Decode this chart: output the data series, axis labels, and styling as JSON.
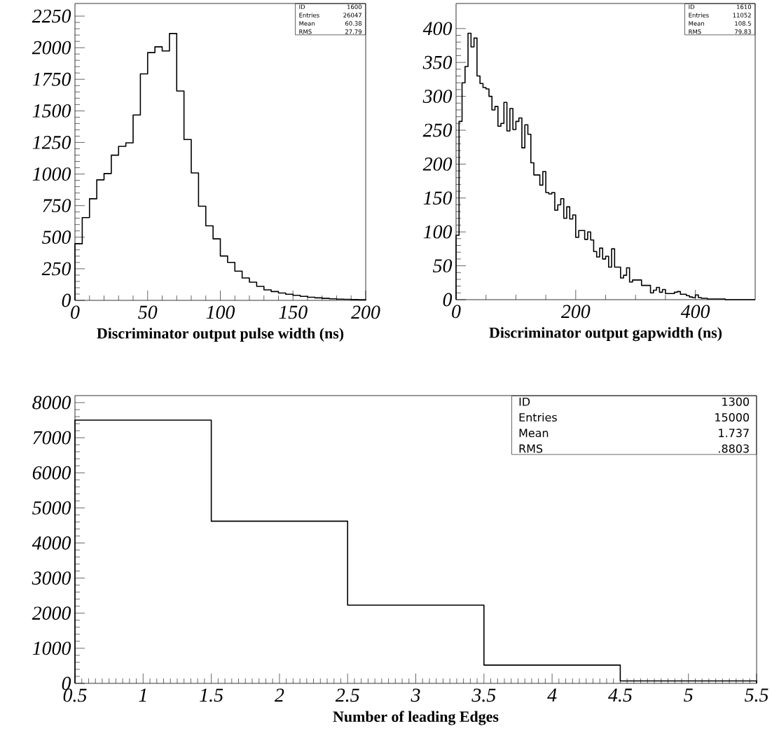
{
  "chart_data": [
    {
      "type": "histogram",
      "xlabel": "Discriminator output pulse width (ns)",
      "color": "#000000",
      "bins": [
        0,
        5,
        10,
        15,
        20,
        25,
        30,
        35,
        40,
        45,
        50,
        55,
        60,
        65,
        70,
        75,
        80,
        85,
        90,
        95,
        100,
        105,
        110,
        115,
        120,
        125,
        130,
        135,
        140,
        145,
        150,
        155,
        160,
        165,
        170,
        175,
        180,
        185,
        190,
        195,
        200
      ],
      "values": [
        448,
        655,
        804,
        954,
        1004,
        1149,
        1219,
        1247,
        1467,
        1793,
        1961,
        2007,
        1974,
        2112,
        1657,
        1273,
        1009,
        745,
        590,
        487,
        351,
        301,
        231,
        177,
        144,
        111,
        83,
        70,
        58,
        48,
        40,
        32,
        25,
        20,
        16,
        12,
        10,
        8,
        6,
        5
      ],
      "xlim": [
        0,
        200
      ],
      "xticks": [
        0,
        50,
        100,
        150,
        200
      ],
      "ylim": [
        0,
        2350
      ],
      "yticks": [
        0,
        250,
        500,
        750,
        1000,
        1250,
        1500,
        1750,
        2000,
        2250
      ],
      "annotations": [
        "ID",
        "1600",
        "Entries",
        "26047",
        "Mean",
        "60.38",
        "RMS",
        "27.79"
      ]
    },
    {
      "type": "histogram",
      "xlabel": "Discriminator output gapwidth (ns)",
      "color": "#000000",
      "bins": [
        0,
        5,
        10,
        15,
        20,
        25,
        30,
        35,
        40,
        45,
        50,
        55,
        60,
        65,
        70,
        75,
        80,
        85,
        90,
        95,
        100,
        105,
        110,
        115,
        120,
        125,
        130,
        135,
        140,
        145,
        150,
        155,
        160,
        165,
        170,
        175,
        180,
        185,
        190,
        195,
        200,
        205,
        210,
        215,
        220,
        225,
        230,
        235,
        240,
        245,
        250,
        255,
        260,
        265,
        270,
        275,
        280,
        285,
        290,
        295,
        300,
        305,
        310,
        315,
        320,
        325,
        330,
        335,
        340,
        345,
        350,
        355,
        360,
        365,
        370,
        375,
        380,
        385,
        390,
        395,
        400,
        405,
        410,
        415,
        420,
        425,
        430,
        435,
        440,
        445,
        450,
        455,
        460,
        465,
        470,
        475,
        480,
        485,
        490,
        495,
        500
      ],
      "values": [
        95,
        263,
        320,
        344,
        393,
        373,
        386,
        330,
        319,
        313,
        311,
        300,
        280,
        285,
        256,
        260,
        291,
        249,
        282,
        251,
        263,
        268,
        224,
        258,
        244,
        202,
        184,
        184,
        169,
        189,
        158,
        156,
        158,
        132,
        140,
        149,
        120,
        137,
        119,
        125,
        92,
        102,
        102,
        89,
        100,
        88,
        71,
        63,
        76,
        60,
        64,
        48,
        75,
        48,
        48,
        32,
        36,
        47,
        26,
        29,
        29,
        29,
        21,
        21,
        21,
        10,
        14,
        18,
        11,
        15,
        9,
        9,
        9,
        11,
        12,
        8,
        8,
        6,
        4,
        3,
        7,
        3,
        2,
        2,
        1,
        1,
        1,
        1,
        1,
        1,
        0,
        0,
        0,
        0,
        0,
        0,
        0,
        0,
        0,
        0
      ],
      "xlim": [
        0,
        500
      ],
      "xticks": [
        0,
        200,
        400
      ],
      "ylim": [
        0,
        437
      ],
      "yticks": [
        0,
        50,
        100,
        150,
        200,
        250,
        300,
        350,
        400
      ],
      "annotations": [
        "ID",
        "1610",
        "Entries",
        "11052",
        "Mean",
        "108.5",
        "RMS",
        "79.83"
      ]
    },
    {
      "type": "histogram",
      "xlabel": "Number of leading Edges",
      "color": "#000000",
      "bins": [
        0.5,
        1.5,
        2.5,
        3.5,
        4.5,
        5.5
      ],
      "values": [
        7500,
        4620,
        2230,
        520,
        70
      ],
      "xlim": [
        0.5,
        5.5
      ],
      "xticks": [
        0.5,
        1,
        1.5,
        2,
        2.5,
        3,
        3.5,
        4,
        4.5,
        5,
        5.5
      ],
      "ylim": [
        0,
        8200
      ],
      "yticks": [
        0,
        1000,
        2000,
        3000,
        4000,
        5000,
        6000,
        7000,
        8000
      ],
      "annotations": [
        "ID",
        "1300",
        "Entries",
        "15000",
        "Mean",
        "1.737",
        "RMS",
        ".8803"
      ]
    }
  ]
}
